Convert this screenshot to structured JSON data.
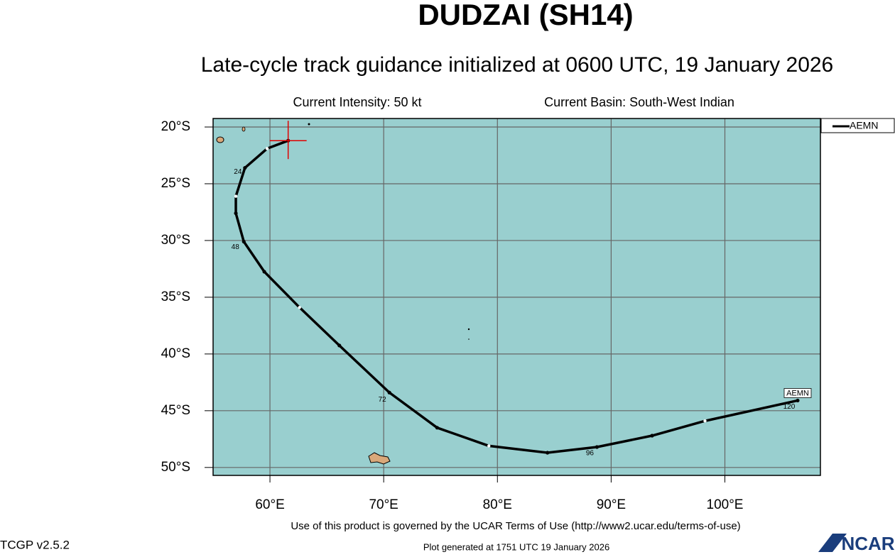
{
  "chart_data": {
    "type": "line",
    "title": "DUDZAI (SH14)",
    "subtitle": "Late-cycle track guidance initialized at 0600 UTC, 19 January 2026",
    "intensity": "Current Intensity: 50 kt",
    "basin": "Current Basin: South-West Indian",
    "footer_terms": "Use of this product is governed by the UCAR Terms of Use (http://www2.ucar.edu/terms-of-use)",
    "version": "TCGP v2.5.2",
    "generated": "Plot generated at 1751 UTC   19 January 2026",
    "logo": "NCAR",
    "xlim": [
      55,
      108.4
    ],
    "ylim": [
      -50.7,
      -19.25
    ],
    "xticks": [
      {
        "value": 60,
        "label": "60°E"
      },
      {
        "value": 70,
        "label": "70°E"
      },
      {
        "value": 80,
        "label": "80°E"
      },
      {
        "value": 90,
        "label": "90°E"
      },
      {
        "value": 100,
        "label": "100°E"
      }
    ],
    "yticks": [
      {
        "value": -20,
        "label": "20°S"
      },
      {
        "value": -25,
        "label": "25°S"
      },
      {
        "value": -30,
        "label": "30°S"
      },
      {
        "value": -35,
        "label": "35°S"
      },
      {
        "value": -40,
        "label": "40°S"
      },
      {
        "value": -45,
        "label": "45°S"
      },
      {
        "value": -50,
        "label": "50°S"
      }
    ],
    "grid": true,
    "legend": "top-right",
    "series": [
      {
        "name": "AEMN",
        "color": "#000000",
        "x": [
          61.6,
          59.75,
          57.8,
          57.0,
          57.0,
          57.7,
          59.5,
          62.6,
          66.1,
          70.5,
          74.7,
          79.25,
          84.4,
          88.75,
          93.6,
          98.25,
          106.4
        ],
        "values": [
          -21.2,
          -21.9,
          -23.6,
          -26.1,
          -27.6,
          -30.1,
          -32.75,
          -35.9,
          -39.25,
          -43.4,
          -46.5,
          -48.1,
          -48.7,
          -48.2,
          -47.2,
          -45.9,
          -44.1
        ]
      }
    ],
    "hour_labels": [
      "24",
      "48",
      "72",
      "96",
      "120"
    ]
  }
}
